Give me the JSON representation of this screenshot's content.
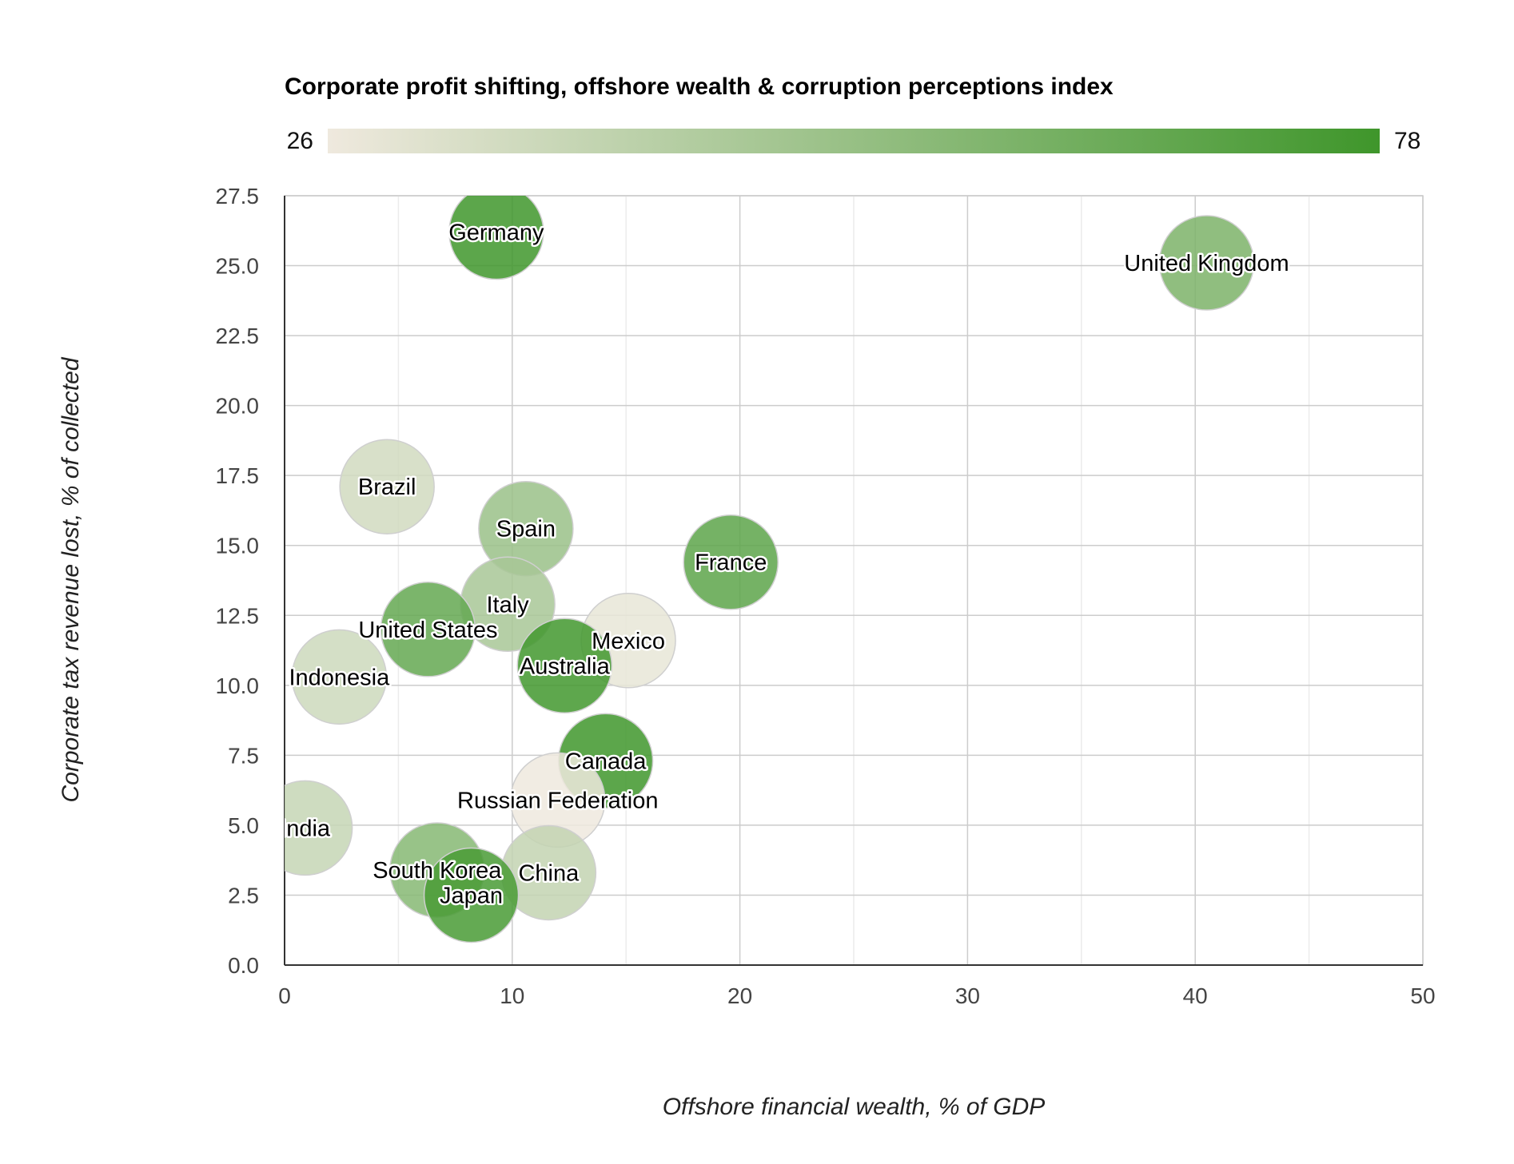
{
  "chart_data": {
    "type": "scatter",
    "title": "Corporate profit shifting, offshore wealth & corruption perceptions index",
    "xlabel": "Offshore financial wealth, % of GDP",
    "ylabel": "Corporate tax revenue lost, % of collected",
    "xlim": [
      0,
      50
    ],
    "ylim": [
      0,
      27.5
    ],
    "x_ticks": [
      "0",
      "10",
      "20",
      "30",
      "40",
      "50"
    ],
    "y_ticks": [
      "0.0",
      "2.5",
      "5.0",
      "7.5",
      "10.0",
      "12.5",
      "15.0",
      "17.5",
      "20.0",
      "22.5",
      "25.0",
      "27.5"
    ],
    "grid": true,
    "color_axis": {
      "min": 26,
      "max": 78,
      "min_label": "26",
      "max_label": "78",
      "colors": [
        "#efe9de",
        "#3f962b"
      ]
    },
    "points": [
      {
        "label": "Germany",
        "x": 9.3,
        "y": 26.2,
        "color_value": 78
      },
      {
        "label": "United Kingdom",
        "x": 40.5,
        "y": 25.1,
        "color_value": 60
      },
      {
        "label": "Brazil",
        "x": 4.5,
        "y": 17.1,
        "color_value": 35
      },
      {
        "label": "Spain",
        "x": 10.6,
        "y": 15.6,
        "color_value": 51
      },
      {
        "label": "France",
        "x": 19.6,
        "y": 14.4,
        "color_value": 69
      },
      {
        "label": "Italy",
        "x": 9.8,
        "y": 12.9,
        "color_value": 47
      },
      {
        "label": "United States",
        "x": 6.3,
        "y": 12.0,
        "color_value": 67
      },
      {
        "label": "Mexico",
        "x": 15.1,
        "y": 11.6,
        "color_value": 28
      },
      {
        "label": "Australia",
        "x": 12.3,
        "y": 10.7,
        "color_value": 77
      },
      {
        "label": "Indonesia",
        "x": 2.4,
        "y": 10.3,
        "color_value": 36
      },
      {
        "label": "Canada",
        "x": 14.1,
        "y": 7.3,
        "color_value": 78
      },
      {
        "label": "Russian Federation",
        "x": 12.0,
        "y": 5.9,
        "color_value": 26
      },
      {
        "label": "India",
        "x": 0.9,
        "y": 4.9,
        "color_value": 38
      },
      {
        "label": "South Korea",
        "x": 6.7,
        "y": 3.4,
        "color_value": 57
      },
      {
        "label": "China",
        "x": 11.6,
        "y": 3.3,
        "color_value": 39
      },
      {
        "label": "Japan",
        "x": 8.2,
        "y": 2.5,
        "color_value": 75
      }
    ]
  }
}
